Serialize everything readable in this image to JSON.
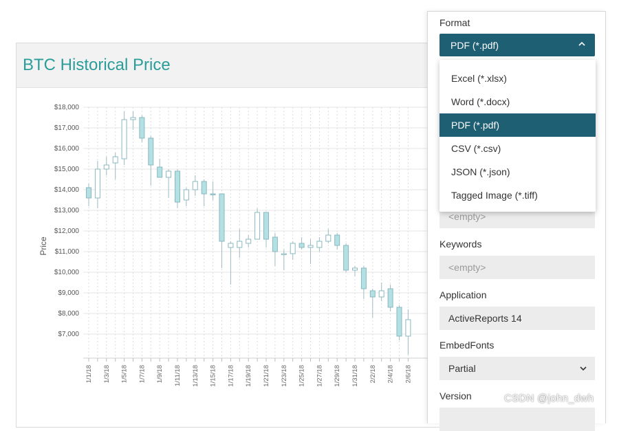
{
  "report": {
    "title": "BTC Historical Price"
  },
  "chart_data": {
    "type": "candlestick",
    "title": "BTC Historical Price",
    "ylabel": "Price",
    "xlabel": "",
    "ylim": [
      6000,
      18000
    ],
    "yticks": [
      "$18,000",
      "$17,000",
      "$16,000",
      "$15,000",
      "$14,000",
      "$13,000",
      "$12,000",
      "$11,000",
      "$10,000",
      "$9,000",
      "$8,000",
      "$7,000"
    ],
    "ytick_values": [
      18000,
      17000,
      16000,
      15000,
      14000,
      13000,
      12000,
      11000,
      10000,
      9000,
      8000,
      7000
    ],
    "xticks": [
      "1/1/18",
      "1/3/18",
      "1/5/18",
      "1/7/18",
      "1/9/18",
      "1/11/18",
      "1/13/18",
      "1/15/18",
      "1/17/18",
      "1/19/18",
      "1/21/18",
      "1/23/18",
      "1/25/18",
      "1/27/18",
      "1/29/18",
      "1/31/18",
      "2/2/18",
      "2/4/18",
      "2/6/18"
    ],
    "candles": [
      {
        "date": "1/1/18",
        "open": 14100,
        "high": 14300,
        "low": 13200,
        "close": 13600
      },
      {
        "date": "1/2/18",
        "open": 13600,
        "high": 15400,
        "low": 13100,
        "close": 15000
      },
      {
        "date": "1/3/18",
        "open": 15000,
        "high": 15600,
        "low": 14700,
        "close": 15200
      },
      {
        "date": "1/4/18",
        "open": 15300,
        "high": 15800,
        "low": 14500,
        "close": 15600
      },
      {
        "date": "1/5/18",
        "open": 15500,
        "high": 17800,
        "low": 15200,
        "close": 17400
      },
      {
        "date": "1/6/18",
        "open": 17400,
        "high": 17800,
        "low": 16900,
        "close": 17500
      },
      {
        "date": "1/7/18",
        "open": 17500,
        "high": 17600,
        "low": 16300,
        "close": 16500
      },
      {
        "date": "1/8/18",
        "open": 16500,
        "high": 16600,
        "low": 14200,
        "close": 15200
      },
      {
        "date": "1/9/18",
        "open": 15100,
        "high": 15500,
        "low": 14600,
        "close": 14600
      },
      {
        "date": "1/10/18",
        "open": 14600,
        "high": 15000,
        "low": 13600,
        "close": 14900
      },
      {
        "date": "1/11/18",
        "open": 14900,
        "high": 15000,
        "low": 13100,
        "close": 13400
      },
      {
        "date": "1/12/18",
        "open": 13500,
        "high": 14100,
        "low": 13200,
        "close": 14000
      },
      {
        "date": "1/13/18",
        "open": 14000,
        "high": 14700,
        "low": 13700,
        "close": 14400
      },
      {
        "date": "1/14/18",
        "open": 14400,
        "high": 14500,
        "low": 13200,
        "close": 13800
      },
      {
        "date": "1/15/18",
        "open": 13800,
        "high": 14400,
        "low": 13500,
        "close": 13750
      },
      {
        "date": "1/16/18",
        "open": 13800,
        "high": 13800,
        "low": 10200,
        "close": 11500
      },
      {
        "date": "1/17/18",
        "open": 11200,
        "high": 11500,
        "low": 9400,
        "close": 11400
      },
      {
        "date": "1/18/18",
        "open": 11200,
        "high": 12100,
        "low": 10700,
        "close": 11500
      },
      {
        "date": "1/19/18",
        "open": 11400,
        "high": 11800,
        "low": 11200,
        "close": 11600
      },
      {
        "date": "1/20/18",
        "open": 11600,
        "high": 13100,
        "low": 11600,
        "close": 12900
      },
      {
        "date": "1/21/18",
        "open": 12900,
        "high": 12900,
        "low": 11200,
        "close": 11600
      },
      {
        "date": "1/22/18",
        "open": 11700,
        "high": 11900,
        "low": 10300,
        "close": 11000
      },
      {
        "date": "1/23/18",
        "open": 10900,
        "high": 11100,
        "low": 10100,
        "close": 10900
      },
      {
        "date": "1/24/18",
        "open": 10900,
        "high": 11500,
        "low": 10600,
        "close": 11400
      },
      {
        "date": "1/25/18",
        "open": 11400,
        "high": 11700,
        "low": 11100,
        "close": 11200
      },
      {
        "date": "1/26/18",
        "open": 11200,
        "high": 11600,
        "low": 10400,
        "close": 11300
      },
      {
        "date": "1/27/18",
        "open": 11200,
        "high": 11700,
        "low": 11000,
        "close": 11500
      },
      {
        "date": "1/28/18",
        "open": 11500,
        "high": 12100,
        "low": 11400,
        "close": 11800
      },
      {
        "date": "1/29/18",
        "open": 11800,
        "high": 11900,
        "low": 11100,
        "close": 11300
      },
      {
        "date": "1/30/18",
        "open": 11300,
        "high": 11400,
        "low": 10000,
        "close": 10100
      },
      {
        "date": "1/31/18",
        "open": 10100,
        "high": 10300,
        "low": 9800,
        "close": 10200
      },
      {
        "date": "2/1/18",
        "open": 10200,
        "high": 10300,
        "low": 8700,
        "close": 9200
      },
      {
        "date": "2/2/18",
        "open": 9100,
        "high": 9200,
        "low": 7800,
        "close": 8800
      },
      {
        "date": "2/3/18",
        "open": 8800,
        "high": 9500,
        "low": 8600,
        "close": 9100
      },
      {
        "date": "2/4/18",
        "open": 9200,
        "high": 9400,
        "low": 8100,
        "close": 8300
      },
      {
        "date": "2/5/18",
        "open": 8300,
        "high": 8400,
        "low": 6700,
        "close": 6900
      },
      {
        "date": "2/6/18",
        "open": 6900,
        "high": 8200,
        "low": 6000,
        "close": 7700
      }
    ],
    "colors": {
      "up": "#ffffff",
      "down": "#b3e0e3",
      "stroke": "#8ab8bf",
      "wick": "#9fbcc2"
    }
  },
  "panel": {
    "format_label": "Format",
    "format_value": "PDF (*.pdf)",
    "options": [
      {
        "label": "Excel (*.xlsx)",
        "selected": false
      },
      {
        "label": "Word (*.docx)",
        "selected": false
      },
      {
        "label": "PDF (*.pdf)",
        "selected": true
      },
      {
        "label": "CSV (*.csv)",
        "selected": false
      },
      {
        "label": "JSON (*.json)",
        "selected": false
      },
      {
        "label": "Tagged Image (*.tiff)",
        "selected": false
      }
    ],
    "hidden_field_placeholder": "<empty>",
    "keywords_label": "Keywords",
    "keywords_placeholder": "<empty>",
    "application_label": "Application",
    "application_value": "ActiveReports 14",
    "embedfonts_label": "EmbedFonts",
    "embedfonts_value": "Partial",
    "version_label": "Version"
  },
  "watermark": "CSDN @john_dwh",
  "colors": {
    "accent": "#1e5f74",
    "title": "#2a9d9a"
  }
}
